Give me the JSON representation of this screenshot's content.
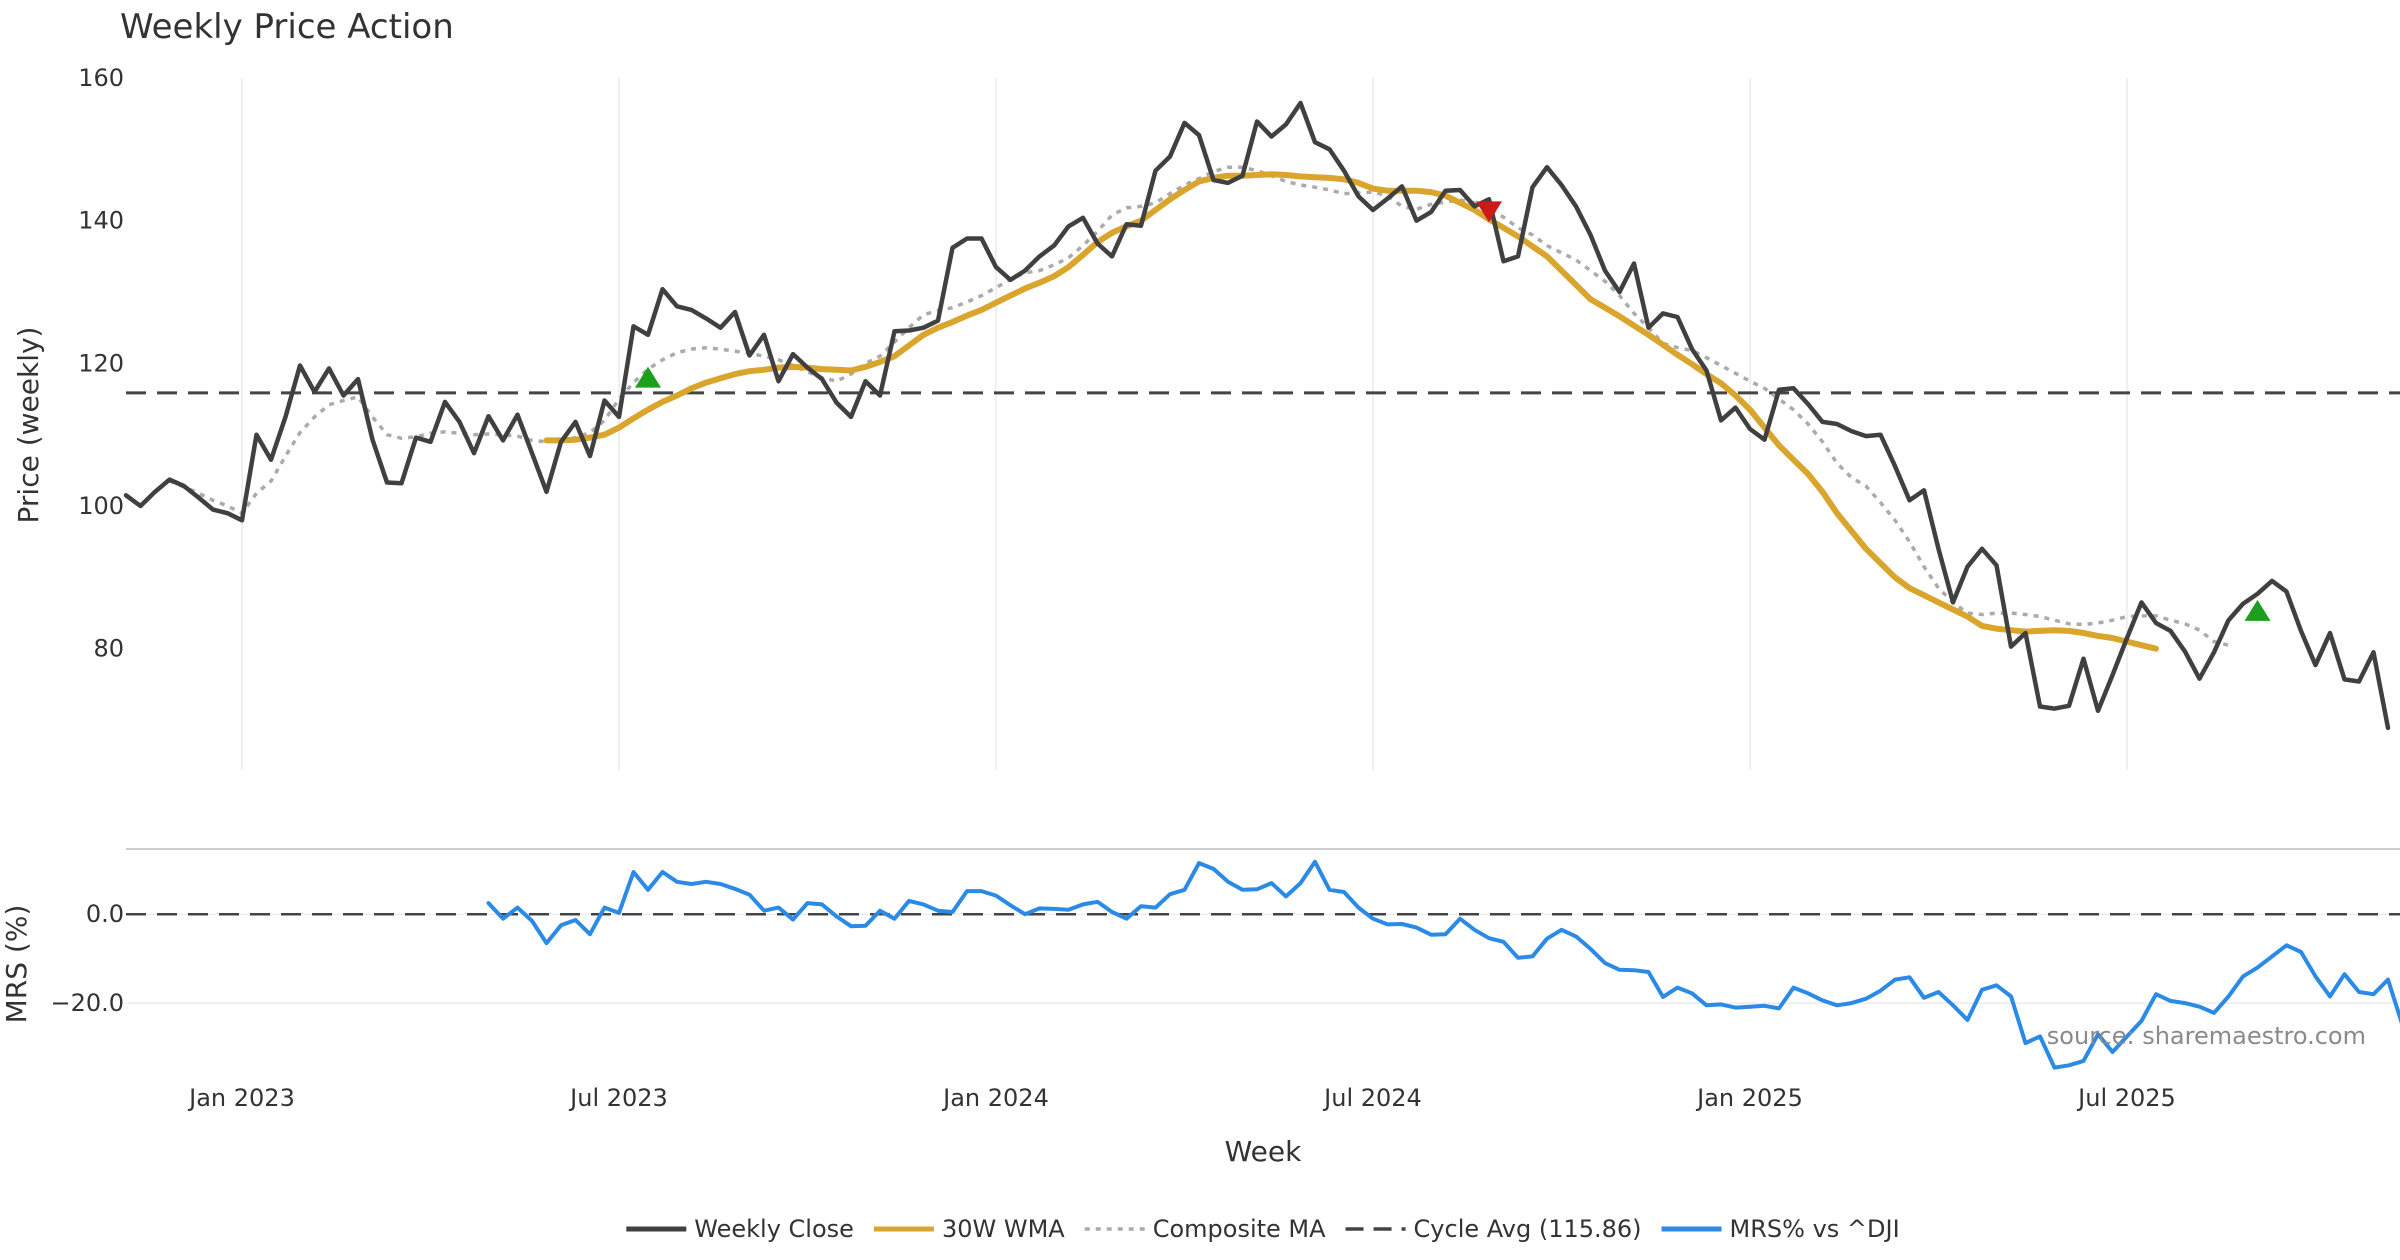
{
  "chart_data": [
    {
      "type": "line",
      "title": "Weekly Price Action",
      "ylabel": "Price (weekly)",
      "ylim": [
        63,
        160
      ],
      "yticks": [
        80,
        100,
        120,
        140,
        160
      ],
      "grid": true,
      "x_labels": [
        "Jan 2023",
        "Jul 2023",
        "Jan 2024",
        "Jul 2024",
        "Jan 2025",
        "Jul 2025"
      ],
      "x_label_index": [
        8,
        34,
        60,
        86,
        112,
        138
      ],
      "series": [
        {
          "name": "Weekly Close",
          "color": "#404040",
          "start_index": 0,
          "values": [
            101.5,
            100,
            102,
            103.7,
            102.8,
            101.2,
            99.5,
            99,
            98,
            110,
            106.5,
            112.5,
            119.7,
            116,
            119.3,
            115.5,
            117.8,
            109.3,
            103.3,
            103.2,
            109.6,
            109,
            114.6,
            111.8,
            107.4,
            112.6,
            109.2,
            112.8,
            107.4,
            102,
            109,
            111.8,
            107,
            114.8,
            112.5,
            125.2,
            124,
            130.4,
            128,
            127.5,
            126.3,
            125,
            127.2,
            121.1,
            124,
            117.5,
            121.3,
            119.4,
            117.8,
            114.5,
            112.5,
            117.5,
            115.5,
            124.5,
            124.6,
            125,
            126,
            136.2,
            137.5,
            137.5,
            133.5,
            131.7,
            133,
            135,
            136.5,
            139.2,
            140.4,
            136.8,
            135,
            139.5,
            139.3,
            147,
            149,
            153.7,
            152,
            145.7,
            145.3,
            146.3,
            153.9,
            151.8,
            153.5,
            156.5,
            151,
            150,
            147,
            143.4,
            141.5,
            143.1,
            144.8,
            140,
            141.2,
            144.2,
            144.3,
            142,
            143,
            134.3,
            135,
            144.7,
            147.5,
            145,
            142,
            138,
            133,
            130,
            134,
            125,
            127,
            126.5,
            122,
            119,
            112,
            113.8,
            110.8,
            109.3,
            116.3,
            116.5,
            114.3,
            111.8,
            111.5,
            110.5,
            109.8,
            110,
            105.6,
            100.8,
            102.2,
            94,
            86.5,
            91.5,
            94,
            91.7,
            80.3,
            82.2,
            71.9,
            71.6,
            72,
            78.6,
            71.3,
            76.3,
            81.5,
            86.5,
            83.6,
            82.5,
            79.6,
            75.8,
            79.5,
            84,
            86.3,
            87.7,
            89.5,
            88,
            82.5,
            77.7,
            82.2,
            75.7,
            75.4,
            79.5,
            68.9
          ]
        },
        {
          "name": "30W WMA",
          "color": "#d9a52c",
          "start_index": 29,
          "values": [
            109.2,
            109.2,
            109.3,
            109.6,
            110,
            111,
            112.3,
            113.5,
            114.6,
            115.5,
            116.5,
            117.3,
            117.9,
            118.5,
            118.9,
            119.1,
            119.4,
            119.5,
            119.4,
            119.2,
            119.1,
            119,
            119.5,
            120.2,
            121,
            122.5,
            124,
            125,
            125.8,
            126.7,
            127.5,
            128.5,
            129.5,
            130.5,
            131.3,
            132.2,
            133.5,
            135.2,
            137,
            138.3,
            139.2,
            140,
            141.5,
            143,
            144.3,
            145.5,
            146,
            146.3,
            146.3,
            146.4,
            146.5,
            146.4,
            146.2,
            146.1,
            146,
            145.8,
            145.3,
            144.5,
            144.2,
            144.2,
            144.2,
            144,
            143.5,
            142.5,
            141.5,
            140.2,
            139,
            137.8,
            136.4,
            135,
            133,
            131,
            129,
            127.8,
            126.6,
            125.3,
            124,
            122.6,
            121.2,
            119.9,
            118.5,
            117.2,
            115.5,
            113.5,
            111,
            108.5,
            106.5,
            104.5,
            102,
            99,
            96.5,
            94,
            92,
            90,
            88.5,
            87.5,
            86.5,
            85.5,
            84.5,
            83.2,
            82.8,
            82.6,
            82.4,
            82.5,
            82.6,
            82.5,
            82.2,
            81.8,
            81.5,
            81,
            80.5,
            80
          ]
        },
        {
          "name": "Composite MA",
          "color": "#ababab",
          "dash": "dotted",
          "start_index": 3,
          "values": [
            103.5,
            102.7,
            101.8,
            100.8,
            100,
            99,
            101.8,
            103.5,
            107,
            110.3,
            112.5,
            114.2,
            114.8,
            115.3,
            112.5,
            110,
            109.5,
            109.7,
            110.2,
            110.4,
            110.2,
            110,
            110.1,
            110,
            109.8,
            109.2,
            109,
            109.1,
            109.6,
            110.3,
            112,
            115,
            117.3,
            119.2,
            120.5,
            121.5,
            122,
            122.2,
            122,
            121.7,
            121.4,
            121,
            120.5,
            119.7,
            118.8,
            118,
            117.5,
            118.5,
            120,
            121,
            123,
            125,
            126.8,
            127.4,
            127.8,
            128.6,
            129.5,
            130.6,
            131.8,
            132.7,
            133,
            133.8,
            134.8,
            136.5,
            138.5,
            140.8,
            141.8,
            142,
            142.5,
            143.8,
            145,
            145.9,
            146.9,
            147.5,
            147.5,
            147,
            146.3,
            145.5,
            145,
            144.7,
            144.3,
            143.8,
            143.9,
            144,
            143.5,
            142,
            141.6,
            142.3,
            142.6,
            142.9,
            142.5,
            141.5,
            140.5,
            139,
            138,
            136.5,
            135.5,
            134.5,
            133,
            131.5,
            129.5,
            127,
            125,
            122.8,
            122.2,
            121.8,
            120.8,
            119.7,
            118.6,
            117.5,
            116.5,
            115,
            113.5,
            111.5,
            109,
            106,
            104,
            102.8,
            100.5,
            98,
            95,
            91.5,
            88.5,
            86.5,
            85,
            84.8,
            85,
            85,
            84.8,
            84.5,
            84,
            83.5,
            83.4,
            83.6,
            84,
            84.5,
            84.6,
            84.6,
            84,
            83.5,
            82.6,
            81,
            80.5
          ]
        }
      ],
      "hlines": [
        {
          "name": "Cycle Avg (115.86)",
          "value": 115.86,
          "color": "#444444",
          "dash": "dashed"
        }
      ],
      "markers": [
        {
          "type": "buy",
          "index": 36,
          "value": 118,
          "color": "#1e9e1e"
        },
        {
          "type": "sell",
          "index": 94,
          "value": 141.3,
          "color": "#cc1a1a"
        },
        {
          "type": "buy",
          "index": 147,
          "value": 85.3,
          "color": "#1e9e1e"
        }
      ]
    },
    {
      "type": "line",
      "ylabel": "MRS (%)",
      "xlabel": "Week",
      "ylim": [
        -35.5,
        14
      ],
      "yticks": [
        0.0,
        -20.0
      ],
      "ytick_labels": [
        "0.0",
        "−20.0"
      ],
      "x_labels": [
        "Jan 2023",
        "Jul 2023",
        "Jan 2024",
        "Jul 2024",
        "Jan 2025",
        "Jul 2025"
      ],
      "x_label_index": [
        8,
        34,
        60,
        86,
        112,
        138
      ],
      "series": [
        {
          "name": "MRS% vs ^DJI",
          "color": "#2a8ae6",
          "start_index": 25,
          "values": [
            2.5,
            -1,
            1.5,
            -1.5,
            -6.5,
            -2.5,
            -1.3,
            -4.5,
            1.5,
            0.3,
            9.5,
            5.5,
            9.5,
            7.3,
            6.8,
            7.3,
            6.8,
            5.7,
            4.4,
            0.8,
            1.5,
            -1.2,
            2.5,
            2.2,
            -0.5,
            -2.7,
            -2.6,
            0.8,
            -1,
            3,
            2.2,
            0.8,
            0.5,
            5.2,
            5.2,
            4.2,
            2,
            0,
            1.3,
            1.2,
            1,
            2.2,
            2.8,
            0.5,
            -1,
            1.8,
            1.5,
            4.5,
            5.5,
            11.5,
            10.2,
            7.3,
            5.5,
            5.6,
            7,
            4,
            7,
            11.8,
            5.5,
            5,
            1.5,
            -1,
            -2.3,
            -2.2,
            -3,
            -4.6,
            -4.5,
            -1,
            -3.5,
            -5.4,
            -6.2,
            -9.8,
            -9.5,
            -5.5,
            -3.5,
            -5,
            -7.8,
            -11,
            -12.5,
            -12.6,
            -13,
            -18.6,
            -16.5,
            -17.8,
            -20.5,
            -20.3,
            -21,
            -20.8,
            -20.6,
            -21.2,
            -16.5,
            -17.8,
            -19.4,
            -20.5,
            -20,
            -19,
            -17.2,
            -14.7,
            -14.2,
            -18.8,
            -17.5,
            -20.5,
            -23.8,
            -17,
            -16,
            -18.5,
            -29,
            -27.5,
            -34.5,
            -34,
            -33,
            -27,
            -31,
            -27.5,
            -24,
            -18,
            -19.5,
            -20,
            -20.8,
            -22.2,
            -18.5,
            -14,
            -12,
            -9.5,
            -7,
            -8.5,
            -14,
            -18.5,
            -13.5,
            -17.5,
            -18,
            -14.7,
            -25
          ]
        }
      ],
      "hlines": [
        {
          "value": 0,
          "color": "#444444",
          "dash": "dashed"
        }
      ],
      "annotations": [
        "source: sharemaestro.com"
      ]
    }
  ],
  "legend": {
    "placement": "bottom-center",
    "items": [
      {
        "label": "Weekly Close",
        "color": "#404040",
        "style": "solid"
      },
      {
        "label": "30W WMA",
        "color": "#d9a52c",
        "style": "solid"
      },
      {
        "label": "Composite MA",
        "color": "#ababab",
        "style": "dotted"
      },
      {
        "label": "Cycle Avg (115.86)",
        "color": "#444444",
        "style": "dashed"
      },
      {
        "label": "MRS% vs ^DJI",
        "color": "#2a8ae6",
        "style": "solid"
      }
    ]
  }
}
